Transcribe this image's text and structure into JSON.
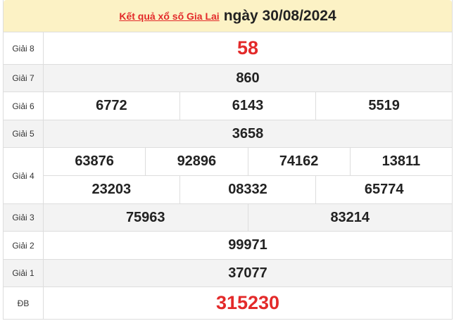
{
  "header": {
    "link_text": "Kết quả xổ số Gia Lai",
    "date_text": "ngày 30/08/2024"
  },
  "colors": {
    "accent": "#e32a2a",
    "header_bg": "#fcf2c5",
    "alt_row_bg": "#f3f3f3"
  },
  "rows": [
    {
      "label": "Giải 8",
      "values": [
        [
          "58"
        ]
      ]
    },
    {
      "label": "Giải 7",
      "values": [
        [
          "860"
        ]
      ]
    },
    {
      "label": "Giải 6",
      "values": [
        [
          "6772",
          "6143",
          "5519"
        ]
      ]
    },
    {
      "label": "Giải 5",
      "values": [
        [
          "3658"
        ]
      ]
    },
    {
      "label": "Giải 4",
      "values": [
        [
          "63876",
          "92896",
          "74162",
          "13811"
        ],
        [
          "23203",
          "08332",
          "65774"
        ]
      ]
    },
    {
      "label": "Giải 3",
      "values": [
        [
          "75963",
          "83214"
        ]
      ]
    },
    {
      "label": "Giải 2",
      "values": [
        [
          "99971"
        ]
      ]
    },
    {
      "label": "Giải 1",
      "values": [
        [
          "37077"
        ]
      ]
    },
    {
      "label": "ĐB",
      "values": [
        [
          "315230"
        ]
      ]
    }
  ]
}
